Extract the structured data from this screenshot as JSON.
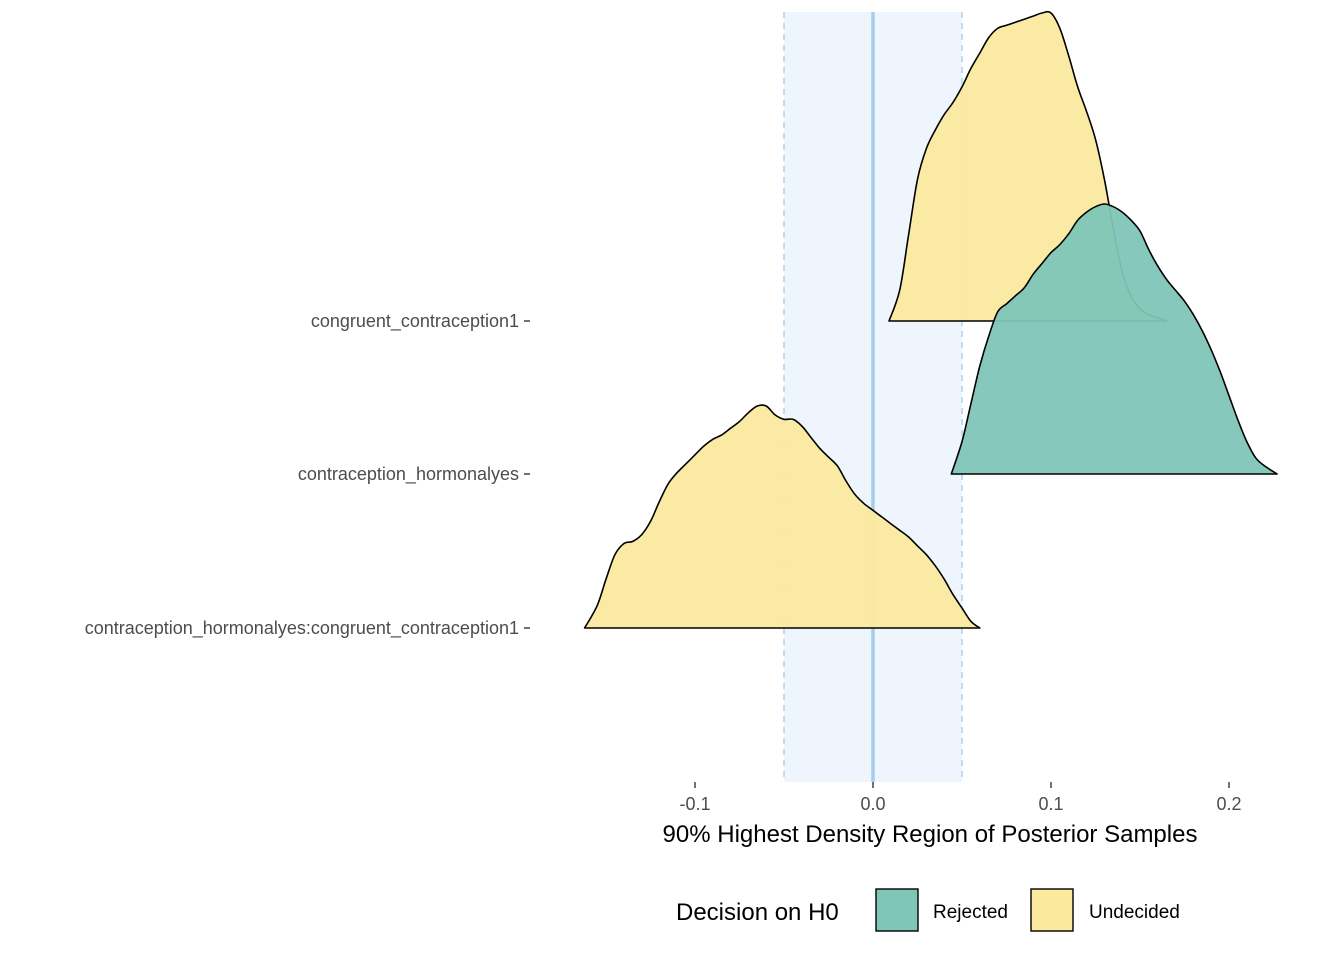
{
  "chart_data": {
    "type": "area",
    "title": "",
    "xlabel": "90% Highest Density Region of Posterior Samples",
    "ylabel": "",
    "xlim": [
      -0.163,
      0.227
    ],
    "xticks": [
      {
        "value": -0.1,
        "label": "-0.1"
      },
      {
        "value": 0.0,
        "label": "0.0"
      },
      {
        "value": 0.1,
        "label": "0.1"
      },
      {
        "value": 0.2,
        "label": "0.2"
      }
    ],
    "categories": [
      "congruent_contraception1",
      "contraception_hormonalyes",
      "contraception_hormonalyes:congruent_contraception1"
    ],
    "rope": {
      "low": -0.05,
      "high": 0.05,
      "center": 0.0,
      "fill": "#eef5fc",
      "line_color": "#b5d4ee",
      "center_color": "#a8cdec"
    },
    "legend": {
      "title": "Decision on H0",
      "position": "bottom",
      "entries": [
        {
          "label": "Rejected",
          "color": "#80c6b8"
        },
        {
          "label": "Undecided",
          "color": "#fbe99e"
        }
      ]
    },
    "series": [
      {
        "category": "congruent_contraception1",
        "decision": "Undecided",
        "x": [
          0.009,
          0.015,
          0.02,
          0.025,
          0.03,
          0.035,
          0.04,
          0.045,
          0.05,
          0.055,
          0.06,
          0.065,
          0.07,
          0.075,
          0.08,
          0.085,
          0.09,
          0.095,
          0.1,
          0.105,
          0.11,
          0.115,
          0.12,
          0.125,
          0.13,
          0.135,
          0.14,
          0.145,
          0.15,
          0.155,
          0.16,
          0.165
        ],
        "density": [
          0.0,
          0.1,
          0.28,
          0.46,
          0.56,
          0.62,
          0.67,
          0.71,
          0.76,
          0.82,
          0.87,
          0.92,
          0.95,
          0.96,
          0.97,
          0.98,
          0.99,
          1.0,
          1.0,
          0.95,
          0.86,
          0.76,
          0.68,
          0.59,
          0.46,
          0.3,
          0.16,
          0.08,
          0.04,
          0.02,
          0.01,
          0.0
        ]
      },
      {
        "category": "contraception_hormonalyes",
        "decision": "Rejected",
        "x": [
          0.044,
          0.05,
          0.055,
          0.06,
          0.065,
          0.07,
          0.075,
          0.08,
          0.085,
          0.09,
          0.095,
          0.1,
          0.105,
          0.11,
          0.115,
          0.12,
          0.125,
          0.13,
          0.135,
          0.14,
          0.145,
          0.15,
          0.155,
          0.16,
          0.165,
          0.17,
          0.175,
          0.18,
          0.185,
          0.19,
          0.195,
          0.2,
          0.205,
          0.21,
          0.215,
          0.22,
          0.227
        ],
        "density": [
          0.0,
          0.12,
          0.26,
          0.4,
          0.51,
          0.6,
          0.63,
          0.66,
          0.69,
          0.74,
          0.78,
          0.82,
          0.85,
          0.89,
          0.94,
          0.97,
          0.99,
          1.0,
          0.99,
          0.97,
          0.94,
          0.9,
          0.83,
          0.77,
          0.72,
          0.68,
          0.64,
          0.59,
          0.53,
          0.46,
          0.38,
          0.29,
          0.2,
          0.12,
          0.06,
          0.03,
          0.0
        ]
      },
      {
        "category": "contraception_hormonalyes:congruent_contraception1",
        "decision": "Undecided",
        "x": [
          -0.162,
          -0.155,
          -0.15,
          -0.145,
          -0.14,
          -0.135,
          -0.13,
          -0.125,
          -0.12,
          -0.115,
          -0.11,
          -0.105,
          -0.1,
          -0.095,
          -0.09,
          -0.085,
          -0.08,
          -0.075,
          -0.07,
          -0.065,
          -0.06,
          -0.055,
          -0.05,
          -0.045,
          -0.04,
          -0.035,
          -0.03,
          -0.025,
          -0.02,
          -0.015,
          -0.01,
          -0.005,
          0.0,
          0.005,
          0.01,
          0.015,
          0.02,
          0.025,
          0.03,
          0.035,
          0.04,
          0.045,
          0.05,
          0.055,
          0.06
        ],
        "density": [
          0.0,
          0.1,
          0.22,
          0.33,
          0.38,
          0.39,
          0.42,
          0.48,
          0.57,
          0.65,
          0.7,
          0.74,
          0.78,
          0.82,
          0.85,
          0.87,
          0.9,
          0.93,
          0.97,
          1.0,
          1.0,
          0.96,
          0.94,
          0.94,
          0.91,
          0.86,
          0.81,
          0.77,
          0.73,
          0.66,
          0.6,
          0.56,
          0.53,
          0.5,
          0.47,
          0.44,
          0.41,
          0.37,
          0.33,
          0.28,
          0.22,
          0.15,
          0.09,
          0.03,
          0.0
        ]
      }
    ]
  }
}
